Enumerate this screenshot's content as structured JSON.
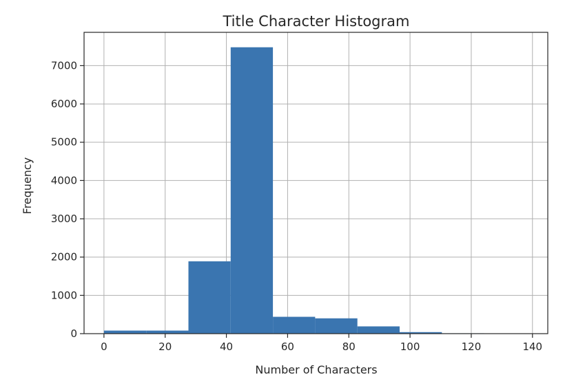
{
  "chart_data": {
    "type": "bar",
    "title": "Title Character Histogram",
    "xlabel": "Number of Characters",
    "ylabel": "Frequency",
    "xlim": [
      -6.5,
      145
    ],
    "ylim": [
      0,
      7870
    ],
    "grid": true,
    "x_ticks": [
      0,
      20,
      40,
      60,
      80,
      100,
      120,
      140
    ],
    "y_ticks": [
      0,
      1000,
      2000,
      3000,
      4000,
      5000,
      6000,
      7000
    ],
    "bin_edges": [
      0,
      13.8,
      27.6,
      41.4,
      55.2,
      69,
      82.8,
      96.6,
      110.4,
      124.2,
      138
    ],
    "values": [
      80,
      80,
      1890,
      7480,
      440,
      400,
      190,
      40,
      10,
      5
    ],
    "bar_color": "#3a75b0"
  }
}
